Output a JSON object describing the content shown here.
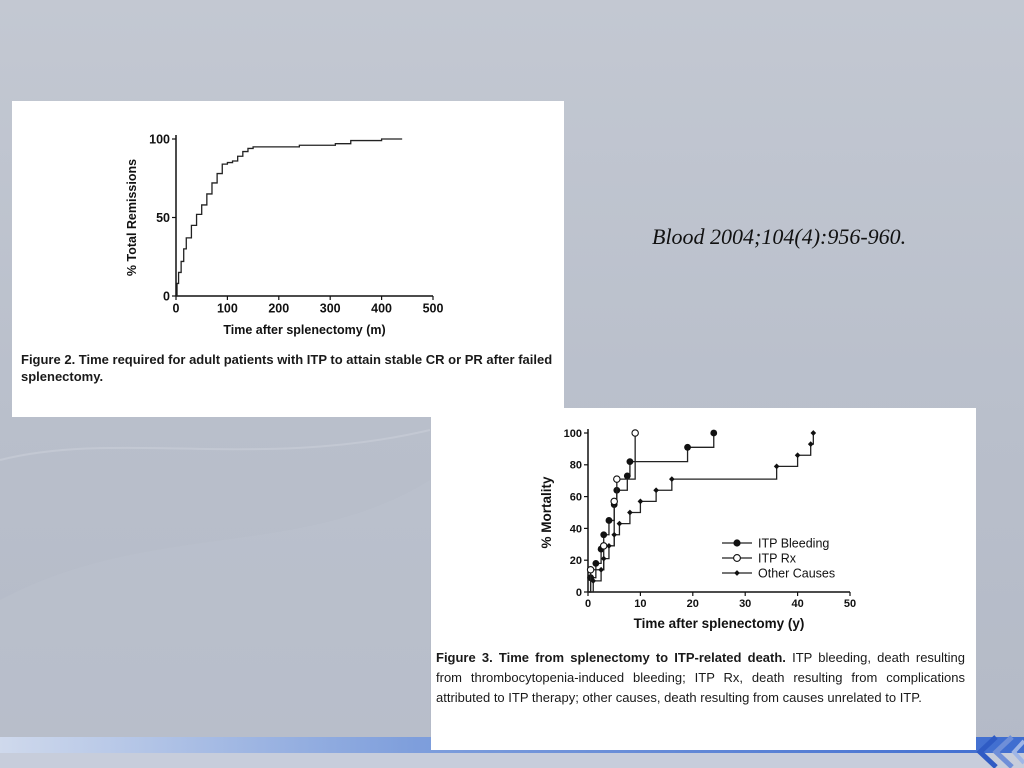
{
  "citation": "Blood 2004;104(4):956-960.",
  "chart_data": [
    {
      "type": "line",
      "xlabel": "Time after splenectomy (m)",
      "ylabel": "% Total Remissions",
      "xlim": [
        0,
        500
      ],
      "ylim": [
        0,
        100
      ],
      "x_ticks": [
        "0",
        "100",
        "200",
        "300",
        "400",
        "500"
      ],
      "y_ticks": [
        "0",
        "50",
        "100"
      ],
      "caption": "Figure 2. Time required for adult patients with ITP to attain stable CR or PR after failed splenectomy.",
      "series": [
        {
          "x": [
            0,
            2,
            5,
            10,
            15,
            20,
            30,
            40,
            50,
            60,
            70,
            80,
            90,
            100,
            110,
            120,
            130,
            140,
            150,
            200,
            235,
            240,
            300,
            310,
            320,
            340,
            400,
            440
          ],
          "y": [
            0,
            8,
            15,
            22,
            30,
            37,
            45,
            52,
            58,
            65,
            72,
            78,
            84,
            85,
            86,
            89,
            92,
            94,
            95,
            95,
            95,
            96,
            96,
            97,
            97,
            99,
            100,
            100
          ]
        }
      ]
    },
    {
      "type": "line",
      "xlabel": "Time after splenectomy (y)",
      "ylabel": "% Mortality",
      "xlim": [
        0,
        50
      ],
      "ylim": [
        0,
        100
      ],
      "x_ticks": [
        "0",
        "10",
        "20",
        "30",
        "40",
        "50"
      ],
      "y_ticks": [
        "0",
        "20",
        "40",
        "60",
        "80",
        "100"
      ],
      "legend_position": "lower-right",
      "caption_title": "Figure 3. Time from splenectomy to ITP-related death.",
      "caption_body": " ITP bleeding, death resulting from thrombocytopenia-induced bleeding; ITP Rx, death resulting from complications attributed to ITP therapy; other causes, death resulting from causes unrelated to ITP.",
      "series": [
        {
          "name": "ITP Bleeding",
          "marker": "filled-circle",
          "x": [
            0,
            0.5,
            1.5,
            2.5,
            3,
            4,
            5,
            5.5,
            7.5,
            8,
            19,
            24
          ],
          "y": [
            0,
            9,
            18,
            27,
            36,
            45,
            55,
            64,
            73,
            82,
            91,
            100
          ]
        },
        {
          "name": "ITP Rx",
          "marker": "open-circle",
          "x": [
            0,
            0.5,
            3,
            5,
            5.5,
            9
          ],
          "y": [
            0,
            14,
            29,
            57,
            71,
            100
          ]
        },
        {
          "name": "Other Causes",
          "marker": "small-diamond",
          "x": [
            0,
            1,
            2.5,
            3,
            4,
            5,
            6,
            8,
            10,
            13,
            16,
            36,
            40,
            42.5,
            43
          ],
          "y": [
            0,
            7,
            14,
            21,
            29,
            36,
            43,
            50,
            57,
            64,
            71,
            79,
            86,
            93,
            100
          ]
        }
      ]
    }
  ]
}
